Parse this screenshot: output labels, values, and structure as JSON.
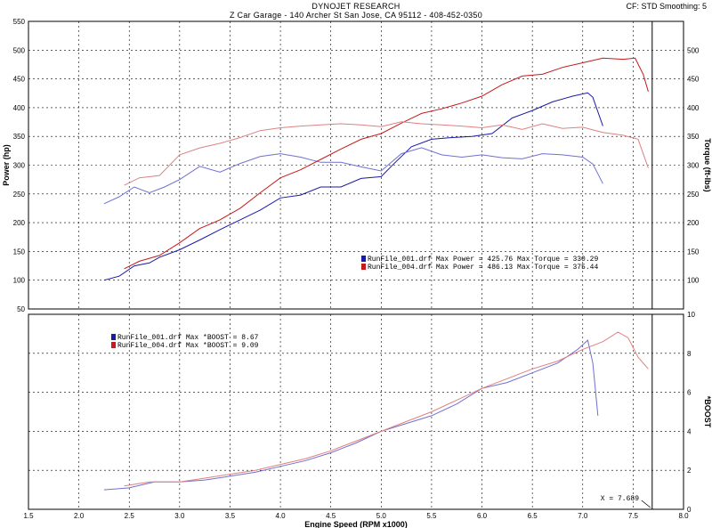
{
  "header": {
    "title": "DYNOJET RESEARCH",
    "subtitle": "Z Car Garage - 140 Archer St San Jose, CA 95112 - 408-452-0350",
    "cf_info": "CF: STD   Smoothing: 5"
  },
  "cursor_label": "X = 7.689",
  "chart_data": [
    {
      "type": "line",
      "name": "power-torque",
      "xlabel": "Engine Speed (RPM x1000)",
      "ylabel_left": "Power (hp)",
      "ylabel_right": "Torque (ft-lbs)",
      "xlim": [
        1.5,
        8.0
      ],
      "ylim": [
        50,
        550
      ],
      "xticks": [
        "1.5",
        "2.0",
        "2.5",
        "3.0",
        "3.5",
        "4.0",
        "4.5",
        "5.0",
        "5.5",
        "6.0",
        "6.5",
        "7.0",
        "7.5",
        "8.0"
      ],
      "yticks": [
        "50",
        "100",
        "150",
        "200",
        "250",
        "300",
        "350",
        "400",
        "450",
        "500",
        "550"
      ],
      "yticks_right": [
        "100",
        "150",
        "200",
        "250",
        "300",
        "350",
        "400",
        "450",
        "500"
      ],
      "grid": true,
      "cursor_x": 7.689,
      "legend": [
        {
          "text": "RunFile_001.drf Max Power = 425.76    Max Torque = 330.29",
          "color": "#1a1aa8"
        },
        {
          "text": "RunFile_004.drf Max Power = 486.13    Max Torque = 375.44",
          "color": "#c41a1a"
        }
      ],
      "series": [
        {
          "name": "RunFile_001.drf",
          "kind": "power",
          "color": "#1a1aa8",
          "points": [
            [
              2.25,
              100
            ],
            [
              2.4,
              107
            ],
            [
              2.55,
              125
            ],
            [
              2.7,
              130
            ],
            [
              2.8,
              140
            ],
            [
              3.0,
              153
            ],
            [
              3.2,
              170
            ],
            [
              3.4,
              188
            ],
            [
              3.6,
              205
            ],
            [
              3.8,
              222
            ],
            [
              4.0,
              243
            ],
            [
              4.2,
              248
            ],
            [
              4.4,
              262
            ],
            [
              4.6,
              262
            ],
            [
              4.8,
              277
            ],
            [
              5.0,
              280
            ],
            [
              5.1,
              298
            ],
            [
              5.3,
              332
            ],
            [
              5.5,
              345
            ],
            [
              5.7,
              348
            ],
            [
              5.9,
              350
            ],
            [
              6.1,
              355
            ],
            [
              6.3,
              382
            ],
            [
              6.5,
              395
            ],
            [
              6.7,
              410
            ],
            [
              6.9,
              420
            ],
            [
              7.05,
              425.76
            ],
            [
              7.1,
              418
            ],
            [
              7.2,
              368
            ]
          ]
        },
        {
          "name": "RunFile_001.drf",
          "kind": "torque",
          "color": "#7070d0",
          "points": [
            [
              2.25,
              233
            ],
            [
              2.4,
              245
            ],
            [
              2.55,
              262
            ],
            [
              2.7,
              252
            ],
            [
              2.85,
              262
            ],
            [
              3.0,
              275
            ],
            [
              3.2,
              298
            ],
            [
              3.4,
              288
            ],
            [
              3.6,
              303
            ],
            [
              3.8,
              315
            ],
            [
              4.0,
              320
            ],
            [
              4.2,
              314
            ],
            [
              4.4,
              305
            ],
            [
              4.6,
              305
            ],
            [
              4.8,
              297
            ],
            [
              5.0,
              290
            ],
            [
              5.2,
              320
            ],
            [
              5.4,
              330.29
            ],
            [
              5.6,
              318
            ],
            [
              5.8,
              314
            ],
            [
              6.0,
              318
            ],
            [
              6.2,
              313
            ],
            [
              6.4,
              311
            ],
            [
              6.6,
              320
            ],
            [
              6.8,
              318
            ],
            [
              7.0,
              314
            ],
            [
              7.1,
              302
            ],
            [
              7.2,
              268
            ]
          ]
        },
        {
          "name": "RunFile_004.drf",
          "kind": "power",
          "color": "#c41a1a",
          "points": [
            [
              2.45,
              120
            ],
            [
              2.6,
              133
            ],
            [
              2.8,
              143
            ],
            [
              3.0,
              165
            ],
            [
              3.2,
              190
            ],
            [
              3.4,
              205
            ],
            [
              3.6,
              225
            ],
            [
              3.8,
              252
            ],
            [
              4.0,
              278
            ],
            [
              4.2,
              292
            ],
            [
              4.4,
              310
            ],
            [
              4.6,
              328
            ],
            [
              4.8,
              345
            ],
            [
              5.0,
              355
            ],
            [
              5.2,
              373
            ],
            [
              5.4,
              390
            ],
            [
              5.6,
              398
            ],
            [
              5.8,
              408
            ],
            [
              6.0,
              420
            ],
            [
              6.2,
              440
            ],
            [
              6.4,
              455
            ],
            [
              6.6,
              458
            ],
            [
              6.8,
              470
            ],
            [
              7.0,
              478
            ],
            [
              7.2,
              486
            ],
            [
              7.4,
              484
            ],
            [
              7.52,
              486.13
            ],
            [
              7.6,
              458
            ],
            [
              7.65,
              428
            ]
          ]
        },
        {
          "name": "RunFile_004.drf",
          "kind": "torque",
          "color": "#e08080",
          "points": [
            [
              2.45,
              265
            ],
            [
              2.6,
              278
            ],
            [
              2.8,
              282
            ],
            [
              3.0,
              318
            ],
            [
              3.2,
              330
            ],
            [
              3.4,
              338
            ],
            [
              3.6,
              348
            ],
            [
              3.8,
              360
            ],
            [
              4.0,
              365
            ],
            [
              4.2,
              368
            ],
            [
              4.4,
              370
            ],
            [
              4.6,
              372
            ],
            [
              4.8,
              370
            ],
            [
              5.0,
              367
            ],
            [
              5.2,
              375.44
            ],
            [
              5.4,
              372
            ],
            [
              5.6,
              370
            ],
            [
              5.8,
              368
            ],
            [
              6.0,
              365
            ],
            [
              6.2,
              370
            ],
            [
              6.4,
              362
            ],
            [
              6.6,
              372
            ],
            [
              6.8,
              364
            ],
            [
              7.0,
              366
            ],
            [
              7.2,
              357
            ],
            [
              7.4,
              352
            ],
            [
              7.55,
              345
            ],
            [
              7.65,
              295
            ]
          ]
        }
      ]
    },
    {
      "type": "line",
      "name": "boost",
      "xlabel": "Engine Speed (RPM x1000)",
      "ylabel_right": "*BOOST",
      "xlim": [
        1.5,
        8.0
      ],
      "ylim": [
        0,
        10
      ],
      "xticks": [
        "1.5",
        "2.0",
        "2.5",
        "3.0",
        "3.5",
        "4.0",
        "4.5",
        "5.0",
        "5.5",
        "6.0",
        "6.5",
        "7.0",
        "7.5",
        "8.0"
      ],
      "yticks_right": [
        "0",
        "2",
        "4",
        "6",
        "8",
        "10"
      ],
      "grid": true,
      "cursor_x": 7.689,
      "legend": [
        {
          "text": "RunFile_001.drf Max *BOOST = 8.67",
          "color": "#1a1aa8"
        },
        {
          "text": "RunFile_004.drf Max *BOOST = 9.09",
          "color": "#c41a1a"
        }
      ],
      "series": [
        {
          "name": "RunFile_001.drf",
          "color": "#7070d0",
          "points": [
            [
              2.25,
              1.0
            ],
            [
              2.5,
              1.1
            ],
            [
              2.75,
              1.4
            ],
            [
              3.0,
              1.4
            ],
            [
              3.25,
              1.5
            ],
            [
              3.5,
              1.7
            ],
            [
              3.75,
              1.9
            ],
            [
              4.0,
              2.2
            ],
            [
              4.25,
              2.5
            ],
            [
              4.5,
              2.9
            ],
            [
              4.75,
              3.4
            ],
            [
              5.0,
              4.0
            ],
            [
              5.25,
              4.4
            ],
            [
              5.5,
              4.8
            ],
            [
              5.75,
              5.4
            ],
            [
              6.0,
              6.2
            ],
            [
              6.25,
              6.5
            ],
            [
              6.5,
              7.0
            ],
            [
              6.75,
              7.5
            ],
            [
              6.95,
              8.2
            ],
            [
              7.05,
              8.67
            ],
            [
              7.1,
              7.5
            ],
            [
              7.15,
              4.8
            ]
          ]
        },
        {
          "name": "RunFile_004.drf",
          "color": "#e08080",
          "points": [
            [
              2.45,
              1.2
            ],
            [
              2.7,
              1.4
            ],
            [
              3.0,
              1.4
            ],
            [
              3.25,
              1.6
            ],
            [
              3.5,
              1.8
            ],
            [
              3.75,
              2.0
            ],
            [
              4.0,
              2.3
            ],
            [
              4.25,
              2.6
            ],
            [
              4.5,
              3.0
            ],
            [
              4.75,
              3.5
            ],
            [
              5.0,
              4.0
            ],
            [
              5.25,
              4.5
            ],
            [
              5.5,
              5.0
            ],
            [
              5.75,
              5.6
            ],
            [
              6.0,
              6.2
            ],
            [
              6.25,
              6.7
            ],
            [
              6.5,
              7.2
            ],
            [
              6.75,
              7.6
            ],
            [
              7.0,
              8.2
            ],
            [
              7.2,
              8.6
            ],
            [
              7.35,
              9.09
            ],
            [
              7.45,
              8.8
            ],
            [
              7.55,
              7.8
            ],
            [
              7.65,
              7.2
            ]
          ]
        }
      ]
    }
  ]
}
